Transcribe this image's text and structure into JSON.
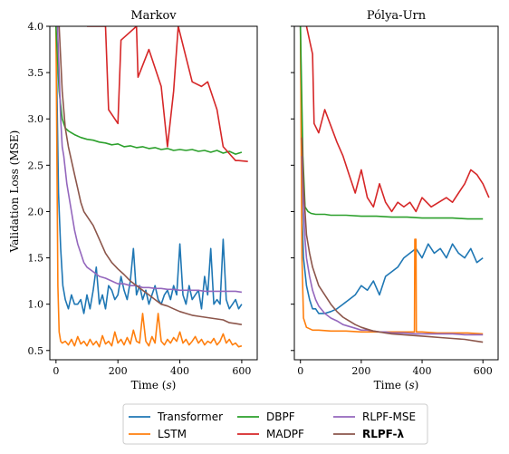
{
  "figure": {
    "ylabel": "Validation Loss (MSE)",
    "xlabel_left": "Time (s)",
    "xlabel_right": "Time (s)"
  },
  "colors": {
    "Transformer": "#1f77b4",
    "LSTM": "#ff7f0e",
    "DBPF": "#2ca02c",
    "MADPF": "#d62728",
    "RLPF-MSE": "#9467bd",
    "RLPF-lambda": "#8c564b"
  },
  "legend": {
    "placement": "bottom-center",
    "entries": [
      {
        "key": "Transformer",
        "label": "Transformer",
        "bold": false
      },
      {
        "key": "LSTM",
        "label": "LSTM",
        "bold": false
      },
      {
        "key": "DBPF",
        "label": "DBPF",
        "bold": false
      },
      {
        "key": "MADPF",
        "label": "MADPF",
        "bold": false
      },
      {
        "key": "RLPF-MSE",
        "label": "RLPF-MSE",
        "bold": false
      },
      {
        "key": "RLPF-lambda",
        "label": "RLPF-λ",
        "bold": true
      }
    ]
  },
  "chart_data": [
    {
      "type": "line",
      "title": "Markov",
      "xlabel": "Time (s)",
      "ylabel": "Validation Loss (MSE)",
      "xlim": [
        -20,
        650
      ],
      "ylim": [
        0.4,
        4.0
      ],
      "xticks": [
        0,
        200,
        400,
        600
      ],
      "yticks": [
        0.5,
        1.0,
        1.5,
        2.0,
        2.5,
        3.0,
        3.5,
        4.0
      ],
      "ytick_labels": [
        "0.5",
        "1.0",
        "1.5",
        "2.0",
        "2.5",
        "3.0",
        "3.5",
        "4.0"
      ],
      "grid": false,
      "series": [
        {
          "name": "Transformer",
          "x": [
            0,
            8,
            15,
            22,
            30,
            40,
            50,
            60,
            70,
            80,
            90,
            100,
            110,
            120,
            130,
            140,
            150,
            160,
            170,
            180,
            190,
            200,
            210,
            220,
            230,
            240,
            250,
            260,
            270,
            280,
            290,
            300,
            310,
            320,
            330,
            340,
            350,
            360,
            370,
            380,
            390,
            400,
            410,
            420,
            430,
            440,
            450,
            460,
            470,
            480,
            490,
            500,
            510,
            520,
            530,
            540,
            550,
            560,
            570,
            580,
            590,
            600
          ],
          "y": [
            4.0,
            2.2,
            1.6,
            1.2,
            1.05,
            0.95,
            1.1,
            1.0,
            1.0,
            1.05,
            0.9,
            1.1,
            0.95,
            1.15,
            1.4,
            1.0,
            1.1,
            0.95,
            1.2,
            1.15,
            1.05,
            1.1,
            1.3,
            1.15,
            1.05,
            1.25,
            1.6,
            1.1,
            1.2,
            1.05,
            1.15,
            1.0,
            1.1,
            1.2,
            1.05,
            1.0,
            1.1,
            1.15,
            1.05,
            1.2,
            1.1,
            1.65,
            1.1,
            1.0,
            1.2,
            1.05,
            1.1,
            1.15,
            0.95,
            1.3,
            1.1,
            1.6,
            1.0,
            1.05,
            1.0,
            1.7,
            1.05,
            0.95,
            1.0,
            1.05,
            0.95,
            1.0
          ]
        },
        {
          "name": "LSTM",
          "x": [
            0,
            3,
            6,
            10,
            15,
            20,
            30,
            40,
            50,
            60,
            70,
            80,
            90,
            100,
            110,
            120,
            130,
            140,
            150,
            160,
            170,
            180,
            190,
            200,
            210,
            220,
            230,
            240,
            250,
            260,
            270,
            280,
            290,
            300,
            310,
            320,
            330,
            340,
            350,
            360,
            370,
            380,
            390,
            400,
            410,
            420,
            430,
            440,
            450,
            460,
            470,
            480,
            490,
            500,
            510,
            520,
            530,
            540,
            550,
            560,
            570,
            580,
            590,
            600
          ],
          "y": [
            4.0,
            2.5,
            1.2,
            0.7,
            0.6,
            0.58,
            0.6,
            0.56,
            0.62,
            0.55,
            0.65,
            0.57,
            0.6,
            0.55,
            0.62,
            0.56,
            0.6,
            0.54,
            0.66,
            0.57,
            0.6,
            0.55,
            0.7,
            0.58,
            0.62,
            0.56,
            0.64,
            0.57,
            0.72,
            0.6,
            0.58,
            0.9,
            0.6,
            0.55,
            0.65,
            0.58,
            0.9,
            0.6,
            0.56,
            0.62,
            0.58,
            0.64,
            0.6,
            0.7,
            0.58,
            0.62,
            0.56,
            0.6,
            0.65,
            0.58,
            0.62,
            0.56,
            0.6,
            0.58,
            0.63,
            0.56,
            0.6,
            0.68,
            0.58,
            0.62,
            0.56,
            0.58,
            0.54,
            0.55
          ]
        },
        {
          "name": "DBPF",
          "x": [
            0,
            10,
            20,
            30,
            40,
            50,
            60,
            80,
            100,
            120,
            140,
            160,
            180,
            200,
            220,
            240,
            260,
            280,
            300,
            320,
            340,
            360,
            380,
            400,
            420,
            440,
            460,
            480,
            500,
            520,
            540,
            560,
            580,
            600
          ],
          "y": [
            4.0,
            3.3,
            3.0,
            2.9,
            2.87,
            2.85,
            2.83,
            2.8,
            2.78,
            2.77,
            2.75,
            2.74,
            2.72,
            2.73,
            2.7,
            2.71,
            2.69,
            2.7,
            2.68,
            2.69,
            2.67,
            2.68,
            2.66,
            2.67,
            2.66,
            2.67,
            2.65,
            2.66,
            2.64,
            2.66,
            2.63,
            2.65,
            2.62,
            2.64
          ]
        },
        {
          "name": "MADPF",
          "x": [
            100,
            160,
            170,
            200,
            210,
            260,
            265,
            300,
            340,
            360,
            380,
            395,
            440,
            470,
            490,
            520,
            540,
            580,
            590,
            620
          ],
          "y": [
            4.0,
            4.0,
            3.1,
            2.95,
            3.85,
            4.0,
            3.45,
            3.75,
            3.35,
            2.7,
            3.3,
            4.0,
            3.4,
            3.35,
            3.4,
            3.1,
            2.7,
            2.55,
            2.55,
            2.54
          ]
        },
        {
          "name": "RLPF-MSE",
          "x": [
            5,
            10,
            15,
            20,
            25,
            30,
            35,
            40,
            50,
            60,
            70,
            80,
            90,
            100,
            120,
            140,
            160,
            180,
            200,
            220,
            240,
            260,
            280,
            300,
            320,
            340,
            360,
            380,
            400,
            420,
            440,
            460,
            480,
            500,
            520,
            540,
            560,
            580,
            600
          ],
          "y": [
            4.0,
            3.5,
            3.0,
            2.7,
            2.6,
            2.45,
            2.3,
            2.2,
            2.0,
            1.8,
            1.65,
            1.55,
            1.45,
            1.4,
            1.35,
            1.3,
            1.28,
            1.25,
            1.22,
            1.22,
            1.2,
            1.2,
            1.18,
            1.18,
            1.17,
            1.17,
            1.16,
            1.16,
            1.15,
            1.15,
            1.15,
            1.15,
            1.14,
            1.14,
            1.14,
            1.14,
            1.14,
            1.14,
            1.13
          ]
        },
        {
          "name": "RLPF-lambda",
          "x": [
            10,
            20,
            30,
            40,
            50,
            60,
            70,
            80,
            90,
            100,
            120,
            140,
            160,
            180,
            200,
            220,
            240,
            260,
            280,
            300,
            320,
            340,
            360,
            380,
            400,
            420,
            440,
            460,
            480,
            500,
            520,
            540,
            560,
            580,
            600
          ],
          "y": [
            4.0,
            3.3,
            2.9,
            2.7,
            2.55,
            2.4,
            2.25,
            2.1,
            2.0,
            1.95,
            1.85,
            1.7,
            1.55,
            1.45,
            1.38,
            1.32,
            1.25,
            1.2,
            1.15,
            1.1,
            1.05,
            1.0,
            0.98,
            0.95,
            0.92,
            0.9,
            0.88,
            0.87,
            0.86,
            0.85,
            0.84,
            0.83,
            0.8,
            0.79,
            0.78
          ]
        }
      ]
    },
    {
      "type": "line",
      "title": "Pólya-Urn",
      "xlabel": "Time (s)",
      "ylabel": "",
      "xlim": [
        -20,
        650
      ],
      "ylim": [
        0.4,
        4.0
      ],
      "xticks": [
        0,
        200,
        400,
        600
      ],
      "yticks": [
        0.5,
        1.0,
        1.5,
        2.0,
        2.5,
        3.0,
        3.5,
        4.0
      ],
      "ytick_labels": [],
      "grid": false,
      "series": [
        {
          "name": "Transformer",
          "x": [
            0,
            5,
            10,
            20,
            30,
            40,
            50,
            60,
            80,
            100,
            120,
            140,
            160,
            180,
            200,
            220,
            240,
            260,
            280,
            300,
            320,
            340,
            360,
            380,
            400,
            420,
            440,
            460,
            480,
            500,
            520,
            540,
            560,
            580,
            600
          ],
          "y": [
            4.0,
            2.0,
            1.5,
            1.2,
            1.05,
            0.95,
            0.95,
            0.9,
            0.9,
            0.92,
            0.95,
            1.0,
            1.05,
            1.1,
            1.2,
            1.15,
            1.25,
            1.1,
            1.3,
            1.35,
            1.4,
            1.5,
            1.55,
            1.6,
            1.5,
            1.65,
            1.55,
            1.6,
            1.5,
            1.65,
            1.55,
            1.5,
            1.6,
            1.45,
            1.5
          ]
        },
        {
          "name": "LSTM",
          "x": [
            0,
            5,
            10,
            20,
            40,
            60,
            100,
            150,
            200,
            250,
            300,
            340,
            360,
            375,
            376,
            380,
            381,
            400,
            450,
            500,
            550,
            600
          ],
          "y": [
            4.0,
            1.5,
            0.85,
            0.75,
            0.72,
            0.72,
            0.71,
            0.71,
            0.7,
            0.7,
            0.7,
            0.7,
            0.7,
            0.7,
            1.7,
            1.7,
            0.7,
            0.7,
            0.69,
            0.69,
            0.69,
            0.68
          ]
        },
        {
          "name": "DBPF",
          "x": [
            0,
            8,
            15,
            25,
            35,
            50,
            80,
            100,
            150,
            200,
            250,
            300,
            350,
            400,
            450,
            500,
            550,
            600
          ],
          "y": [
            4.0,
            2.6,
            2.05,
            2.0,
            1.98,
            1.97,
            1.97,
            1.96,
            1.96,
            1.95,
            1.95,
            1.94,
            1.94,
            1.93,
            1.93,
            1.93,
            1.92,
            1.92
          ]
        },
        {
          "name": "MADPF",
          "x": [
            20,
            40,
            45,
            60,
            80,
            120,
            140,
            160,
            180,
            200,
            220,
            240,
            260,
            280,
            300,
            320,
            340,
            360,
            380,
            400,
            430,
            480,
            500,
            520,
            540,
            560,
            580,
            600,
            620
          ],
          "y": [
            4.0,
            3.7,
            2.95,
            2.85,
            3.1,
            2.75,
            2.6,
            2.4,
            2.2,
            2.45,
            2.15,
            2.05,
            2.3,
            2.1,
            2.0,
            2.1,
            2.05,
            2.1,
            2.0,
            2.15,
            2.05,
            2.15,
            2.1,
            2.2,
            2.3,
            2.45,
            2.4,
            2.3,
            2.15
          ]
        },
        {
          "name": "RLPF-MSE",
          "x": [
            5,
            10,
            15,
            20,
            30,
            40,
            50,
            60,
            80,
            100,
            120,
            140,
            160,
            180,
            200,
            220,
            240,
            260,
            280,
            300,
            340,
            380,
            420,
            460,
            500,
            540,
            580,
            600
          ],
          "y": [
            2.6,
            2.0,
            1.7,
            1.5,
            1.3,
            1.15,
            1.05,
            0.98,
            0.9,
            0.85,
            0.82,
            0.78,
            0.76,
            0.74,
            0.72,
            0.72,
            0.71,
            0.7,
            0.7,
            0.69,
            0.69,
            0.68,
            0.68,
            0.68,
            0.68,
            0.67,
            0.67,
            0.67
          ]
        },
        {
          "name": "RLPF-lambda",
          "x": [
            5,
            10,
            15,
            20,
            30,
            40,
            50,
            60,
            80,
            100,
            120,
            140,
            160,
            180,
            200,
            220,
            240,
            260,
            280,
            300,
            340,
            380,
            420,
            460,
            500,
            540,
            580,
            600
          ],
          "y": [
            2.8,
            2.3,
            2.0,
            1.75,
            1.55,
            1.4,
            1.3,
            1.2,
            1.1,
            1.0,
            0.92,
            0.86,
            0.82,
            0.78,
            0.75,
            0.73,
            0.71,
            0.7,
            0.69,
            0.68,
            0.67,
            0.66,
            0.65,
            0.64,
            0.63,
            0.62,
            0.6,
            0.59
          ]
        }
      ]
    }
  ]
}
